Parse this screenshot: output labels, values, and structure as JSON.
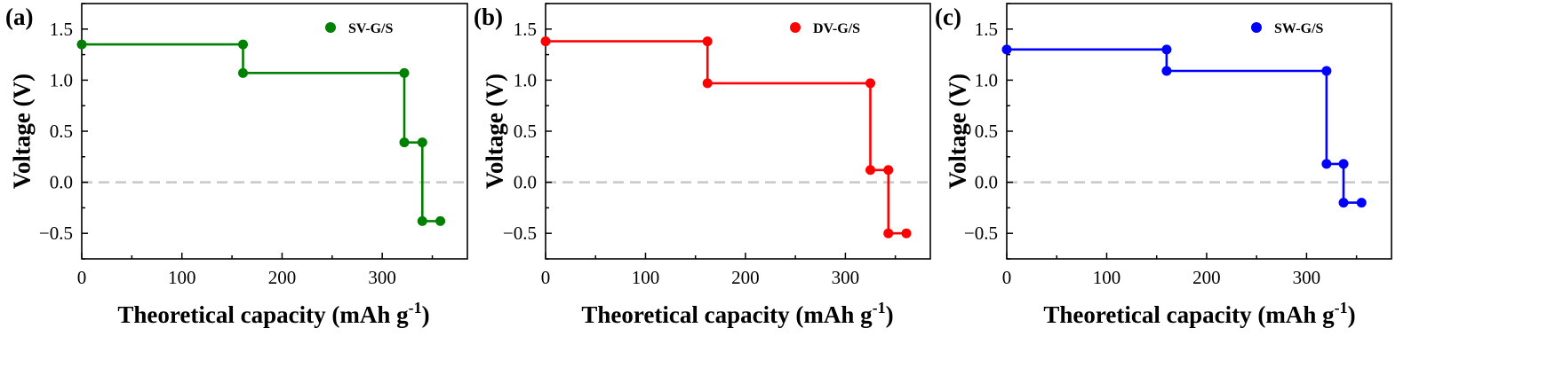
{
  "chart_data": [
    {
      "type": "line",
      "panel_label": "(a)",
      "legend": "SV-G/S",
      "color": "#008000",
      "xlabel": "Theoretical capacity (mAh g",
      "xlabel_sup": "-1",
      "xlabel_tail": ")",
      "ylabel": "Voltage (V)",
      "xlim": [
        0,
        385
      ],
      "ylim": [
        -0.75,
        1.75
      ],
      "xticks": [
        0,
        100,
        200,
        300
      ],
      "xtick_labels": [
        "0",
        "100",
        "200",
        "300"
      ],
      "yticks": [
        -0.5,
        0.0,
        0.5,
        1.0,
        1.5
      ],
      "ytick_labels": [
        "−0.5",
        "0.0",
        "0.5",
        "1.0",
        "1.5"
      ],
      "grid": false,
      "legend_position": "top-right",
      "reference_line_y": 0,
      "series": [
        {
          "name": "SV-G/S",
          "x": [
            0,
            161,
            161,
            322,
            322,
            340,
            340,
            358
          ],
          "y": [
            1.35,
            1.35,
            1.07,
            1.07,
            0.39,
            0.39,
            -0.38,
            -0.38
          ]
        }
      ]
    },
    {
      "type": "line",
      "panel_label": "(b)",
      "legend": "DV-G/S",
      "color": "#ff0000",
      "xlabel": "Theoretical capacity (mAh g",
      "xlabel_sup": "-1",
      "xlabel_tail": ")",
      "ylabel": "Voltage (V)",
      "xlim": [
        0,
        385
      ],
      "ylim": [
        -0.75,
        1.75
      ],
      "xticks": [
        0,
        100,
        200,
        300
      ],
      "xtick_labels": [
        "0",
        "100",
        "200",
        "300"
      ],
      "yticks": [
        -0.5,
        0.0,
        0.5,
        1.0,
        1.5
      ],
      "ytick_labels": [
        "−0.5",
        "0.0",
        "0.5",
        "1.0",
        "1.5"
      ],
      "grid": false,
      "legend_position": "top-right",
      "reference_line_y": 0,
      "series": [
        {
          "name": "DV-G/S",
          "x": [
            0,
            162,
            162,
            325,
            325,
            343,
            343,
            361
          ],
          "y": [
            1.38,
            1.38,
            0.97,
            0.97,
            0.12,
            0.12,
            -0.5,
            -0.5
          ]
        }
      ]
    },
    {
      "type": "line",
      "panel_label": "(c)",
      "legend": "SW-G/S",
      "color": "#0000ff",
      "xlabel": "Theoretical capacity (mAh g",
      "xlabel_sup": "-1",
      "xlabel_tail": ")",
      "ylabel": "Voltage (V)",
      "xlim": [
        0,
        385
      ],
      "ylim": [
        -0.75,
        1.75
      ],
      "xticks": [
        0,
        100,
        200,
        300
      ],
      "xtick_labels": [
        "0",
        "100",
        "200",
        "300"
      ],
      "yticks": [
        -0.5,
        0.0,
        0.5,
        1.0,
        1.5
      ],
      "ytick_labels": [
        "−0.5",
        "0.0",
        "0.5",
        "1.0",
        "1.5"
      ],
      "grid": false,
      "legend_position": "top-right",
      "reference_line_y": 0,
      "series": [
        {
          "name": "SW-G/S",
          "x": [
            0,
            160,
            160,
            320,
            320,
            337,
            337,
            355
          ],
          "y": [
            1.3,
            1.3,
            1.09,
            1.09,
            0.18,
            0.18,
            -0.2,
            -0.2
          ]
        }
      ]
    }
  ]
}
